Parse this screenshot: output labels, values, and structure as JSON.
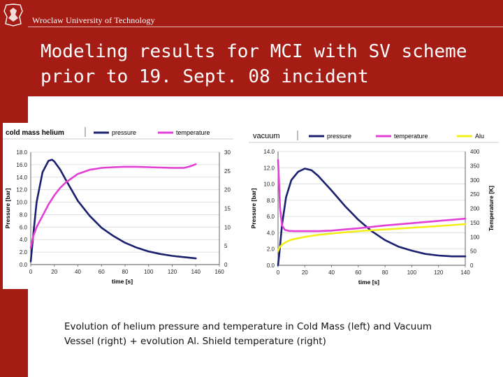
{
  "header": {
    "university": "Wroclaw University of Technology",
    "title_line1": "Modeling results for MCI with SV scheme",
    "title_line2": "prior to 19. Sept. 08 incident",
    "brand_color": "#a51c14"
  },
  "caption": {
    "line1": "Evolution of helium pressure and temperature in Cold Mass (left) and Vacuum",
    "line2": "Vessel (right) + evolution Al. Shield temperature (right)"
  },
  "chart_data": [
    {
      "type": "line",
      "legend_title": "cold mass helium",
      "legend_placement": "top",
      "xlabel": "time [s]",
      "ylabel": "Pressure [bar]",
      "y2label": "Temperature [K]",
      "xlim": [
        0,
        160
      ],
      "ylim": [
        0,
        18
      ],
      "y2lim": [
        0,
        30
      ],
      "x_ticks": [
        "0",
        "20",
        "40",
        "60",
        "80",
        "100",
        "120",
        "140",
        "160"
      ],
      "y_ticks": [
        "0.0",
        "2.0",
        "4.0",
        "6.0",
        "8.0",
        "10.0",
        "12.0",
        "14.0",
        "16.0",
        "18.0"
      ],
      "y2_ticks": [
        "0",
        "5",
        "10",
        "15",
        "20",
        "25",
        "30"
      ],
      "grid": true,
      "series": [
        {
          "name": "pressure",
          "axis": "left",
          "color": "#1a1f6e",
          "x": [
            0,
            2,
            5,
            10,
            15,
            18,
            20,
            25,
            30,
            40,
            50,
            60,
            70,
            80,
            90,
            100,
            110,
            120,
            130,
            140
          ],
          "y": [
            0.5,
            4.5,
            10.0,
            14.8,
            16.6,
            16.8,
            16.5,
            15.2,
            13.5,
            10.2,
            7.8,
            5.9,
            4.6,
            3.5,
            2.7,
            2.1,
            1.7,
            1.4,
            1.2,
            1.0
          ]
        },
        {
          "name": "temperature",
          "axis": "right",
          "color": "#e23fd6",
          "x": [
            0,
            2,
            5,
            10,
            15,
            20,
            25,
            30,
            40,
            50,
            60,
            70,
            80,
            90,
            100,
            110,
            120,
            130,
            135,
            140
          ],
          "y": [
            4.5,
            7.5,
            10.0,
            13.0,
            16.0,
            18.5,
            20.5,
            22.0,
            24.2,
            25.3,
            25.8,
            26.0,
            26.1,
            26.1,
            26.0,
            25.9,
            25.8,
            25.8,
            26.2,
            26.8
          ]
        }
      ]
    },
    {
      "type": "line",
      "legend_title": "vacuum",
      "legend_placement": "top",
      "xlabel": "time [s]",
      "ylabel": "Pressure [bar]",
      "y2label": "Temperature [K]",
      "xlim": [
        0,
        140
      ],
      "ylim": [
        0,
        14
      ],
      "y2lim": [
        0,
        400
      ],
      "x_ticks": [
        "0",
        "20",
        "40",
        "60",
        "80",
        "100",
        "120",
        "140"
      ],
      "y_ticks": [
        "0.0",
        "2.0",
        "4.0",
        "6.0",
        "8.0",
        "10.0",
        "12.0",
        "14.0"
      ],
      "y2_ticks": [
        "0",
        "50",
        "100",
        "150",
        "200",
        "250",
        "300",
        "350",
        "400"
      ],
      "grid": true,
      "series": [
        {
          "name": "pressure",
          "axis": "left",
          "color": "#1a1f6e",
          "x": [
            0,
            1,
            3,
            6,
            10,
            15,
            20,
            25,
            30,
            40,
            50,
            60,
            70,
            80,
            90,
            100,
            110,
            120,
            130,
            140
          ],
          "y": [
            0.0,
            1.5,
            5.0,
            8.4,
            10.5,
            11.5,
            11.9,
            11.7,
            11.0,
            9.2,
            7.3,
            5.6,
            4.2,
            3.1,
            2.3,
            1.8,
            1.4,
            1.2,
            1.1,
            1.1
          ]
        },
        {
          "name": "temperature",
          "axis": "right",
          "color": "#e23fd6",
          "x": [
            0,
            0.7,
            1.5,
            3,
            5,
            8,
            12,
            20,
            30,
            40,
            60,
            80,
            100,
            120,
            140
          ],
          "y": [
            370,
            300,
            200,
            140,
            125,
            121,
            120,
            120,
            120,
            122,
            130,
            140,
            148,
            156,
            164
          ]
        },
        {
          "name": "Alu",
          "axis": "right",
          "color": "#f2ee1a",
          "x": [
            0,
            1,
            3,
            6,
            10,
            20,
            30,
            40,
            60,
            80,
            100,
            120,
            140
          ],
          "y": [
            50,
            62,
            73,
            82,
            90,
            100,
            107,
            112,
            120,
            126,
            132,
            138,
            145
          ]
        }
      ]
    }
  ]
}
